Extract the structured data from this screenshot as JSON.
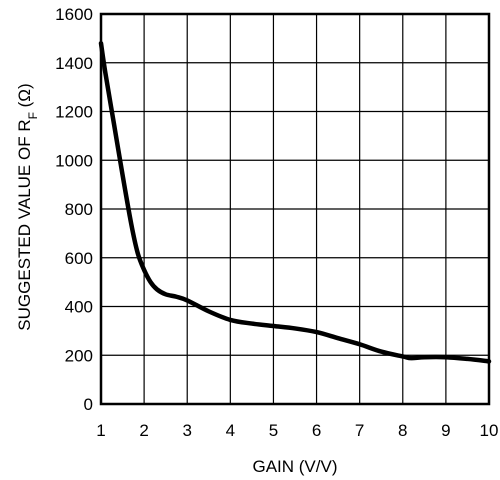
{
  "chart_data": {
    "type": "line",
    "title": "",
    "xlabel": "GAIN (V/V)",
    "ylabel": {
      "main": "SUGGESTED VALUE OF R",
      "subscript": "F",
      "unit": " (Ω)"
    },
    "xlim": [
      1,
      10
    ],
    "ylim": [
      0,
      1600
    ],
    "xticks": [
      "1",
      "2",
      "3",
      "4",
      "5",
      "6",
      "7",
      "8",
      "9",
      "10"
    ],
    "yticks": [
      "0",
      "200",
      "400",
      "600",
      "800",
      "1000",
      "1200",
      "1400",
      "1600"
    ],
    "grid": true,
    "series": [
      {
        "x": [
          1.0,
          1.1,
          1.3,
          1.5,
          1.7,
          1.85,
          2.0,
          2.15,
          2.3,
          2.5,
          2.75,
          3.0,
          3.5,
          4.0,
          4.5,
          5.0,
          5.5,
          6.0,
          6.5,
          7.0,
          7.5,
          8.0,
          8.2,
          8.5,
          9.0,
          9.5,
          10.0
        ],
        "y": [
          1480,
          1360,
          1150,
          940,
          740,
          620,
          550,
          500,
          470,
          450,
          440,
          425,
          380,
          345,
          330,
          320,
          310,
          295,
          270,
          245,
          215,
          195,
          188,
          192,
          192,
          185,
          175
        ]
      }
    ]
  }
}
